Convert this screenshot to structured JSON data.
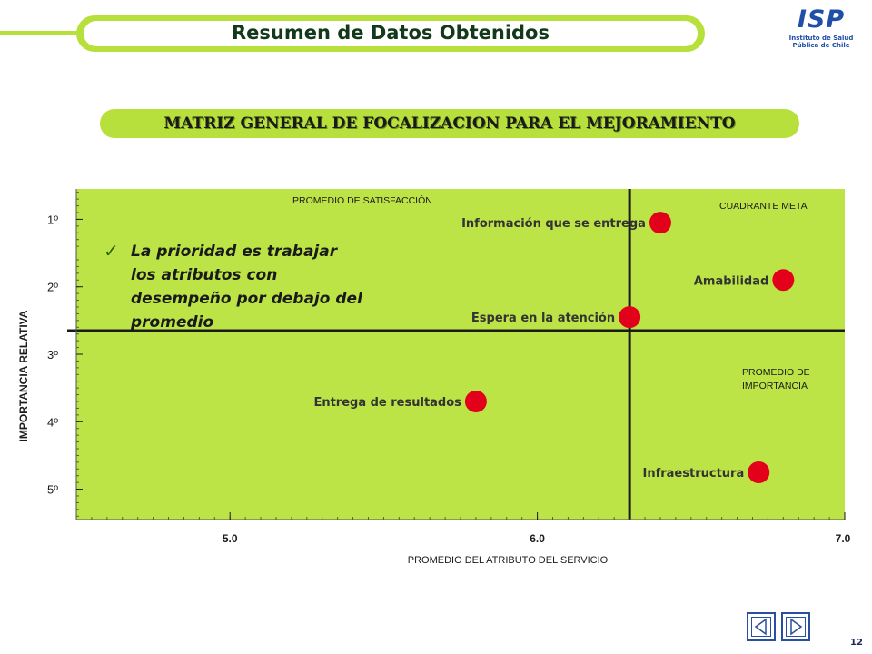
{
  "header": {
    "title": "Resumen de Datos Obtenidos",
    "band_color": "#b8e03c",
    "logo_text": "ISP",
    "logo_subtitle": "Instituto de Salud Pública de Chile",
    "logo_color": "#1f4fa8"
  },
  "banner": {
    "text": "MATRIZ  GENERAL  DE  FOCALIZACION  PARA  EL MEJORAMIENTO"
  },
  "note": {
    "check_icon": "checkmark-icon",
    "text": "La prioridad es trabajar los atributos con desempeño por debajo del promedio"
  },
  "chart_data": {
    "type": "scatter",
    "title": "",
    "xlabel": "PROMEDIO DEL ATRIBUTO DEL SERVICIO",
    "ylabel": "IMPORTANCIA RELATIVA",
    "xlim": [
      4.5,
      7.0
    ],
    "ylim": [
      0.55,
      5.45
    ],
    "y_reversed": true,
    "x_ticks": [
      "5.0",
      "6.0",
      "7.0"
    ],
    "x_tick_values": [
      5.0,
      6.0,
      7.0
    ],
    "y_ticks": [
      "1º",
      "2º",
      "3º",
      "4º",
      "5º"
    ],
    "y_tick_values": [
      1,
      2,
      3,
      4,
      5
    ],
    "plot_bg": "#bde446",
    "point_color": "#e3001b",
    "reference_lines": {
      "satisfaction_mean_x": 6.3,
      "importance_mean_y": 2.65
    },
    "annotations": {
      "satisfaction": "PROMEDIO DE SATISFACCIÓN",
      "target": "CUADRANTE  META",
      "importance": "PROMEDIO DE IMPORTANCIA"
    },
    "points": [
      {
        "label": "Información que se entrega",
        "x": 6.4,
        "y": 1.05
      },
      {
        "label": "Amabilidad",
        "x": 6.8,
        "y": 1.9
      },
      {
        "label": "Espera en la atención",
        "x": 6.3,
        "y": 2.45
      },
      {
        "label": "Entrega de resultados",
        "x": 5.8,
        "y": 3.7
      },
      {
        "label": "Infraestructura",
        "x": 6.72,
        "y": 4.75
      }
    ]
  },
  "footer": {
    "page_number": "12"
  }
}
